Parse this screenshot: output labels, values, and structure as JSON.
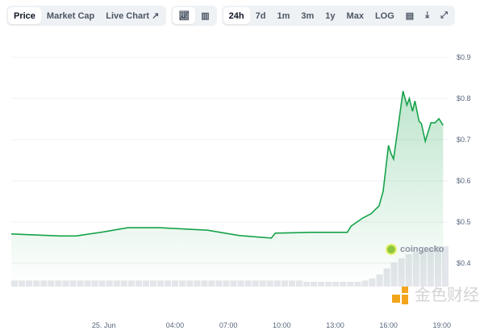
{
  "toolbar": {
    "view_tabs": [
      {
        "label": "Price",
        "selected": true
      },
      {
        "label": "Market Cap",
        "selected": false
      },
      {
        "label": "Live Chart",
        "icon": "external-link-icon",
        "selected": false
      }
    ],
    "chart_type_buttons": [
      {
        "icon": "line-chart-icon",
        "selected": true
      },
      {
        "icon": "candlestick-chart-icon",
        "selected": false
      }
    ],
    "ranges": [
      {
        "label": "24h",
        "selected": true
      },
      {
        "label": "7d"
      },
      {
        "label": "1m"
      },
      {
        "label": "3m"
      },
      {
        "label": "1y"
      },
      {
        "label": "Max"
      },
      {
        "label": "LOG"
      }
    ],
    "icons": [
      "calendar-icon",
      "download-icon",
      "fullscreen-icon"
    ]
  },
  "chart_data": {
    "type": "area",
    "line_color": "#16a34a",
    "fill_color": "#d1f0da",
    "y_ticks": [
      "$0.9",
      "$0.8",
      "$0.7",
      "$0.6",
      "$0.5",
      "$0.4"
    ],
    "ylim": [
      0.4,
      0.9
    ],
    "x_ticks": [
      "25. Jun",
      "04:00",
      "07:00",
      "10:00",
      "13:00",
      "16:00",
      "19:00"
    ],
    "xlim": [
      "24 Jun 18:48",
      "25 Jun 19:25"
    ],
    "grid": true,
    "series": [
      {
        "x": [
          "24 Jun 18:48",
          "24 Jun 21:32",
          "24 Jun 22:26",
          "25 Jun 00:00",
          "25 Jun 01:21",
          "25 Jun 03:08",
          "25 Jun 05:50",
          "25 Jun 07:37",
          "25 Jun 09:25",
          "25 Jun 09:38",
          "25 Jun 11:40",
          "25 Jun 13:41",
          "25 Jun 13:54",
          "25 Jun 14:34",
          "25 Jun 15:01",
          "25 Jun 15:28",
          "25 Jun 15:42",
          "25 Jun 16:00",
          "25 Jun 16:08",
          "25 Jun 16:17",
          "25 Jun 16:35",
          "25 Jun 16:49",
          "25 Jun 17:02",
          "25 Jun 17:10",
          "25 Jun 17:21",
          "25 Jun 17:29",
          "25 Jun 17:43",
          "25 Jun 17:51",
          "25 Jun 18:04",
          "25 Jun 18:23",
          "25 Jun 18:37",
          "25 Jun 18:50",
          "25 Jun 19:04"
        ],
        "y": [
          0.471,
          0.466,
          0.466,
          0.476,
          0.486,
          0.486,
          0.48,
          0.467,
          0.461,
          0.473,
          0.475,
          0.475,
          0.49,
          0.51,
          0.52,
          0.539,
          0.575,
          0.686,
          0.667,
          0.653,
          0.745,
          0.818,
          0.784,
          0.8,
          0.769,
          0.794,
          0.745,
          0.739,
          0.696,
          0.741,
          0.741,
          0.751,
          0.735
        ]
      }
    ],
    "volume_relative": [
      0.15,
      0.15,
      0.15,
      0.15,
      0.15,
      0.15,
      0.15,
      0.15,
      0.15,
      0.15,
      0.15,
      0.15,
      0.15,
      0.15,
      0.15,
      0.15,
      0.15,
      0.15,
      0.15,
      0.15,
      0.15,
      0.15,
      0.15,
      0.15,
      0.15,
      0.15,
      0.15,
      0.15,
      0.15,
      0.15,
      0.15,
      0.15,
      0.15,
      0.15,
      0.15,
      0.15,
      0.15,
      0.15,
      0.15,
      0.15,
      0.12,
      0.12,
      0.12,
      0.12,
      0.12,
      0.12,
      0.12,
      0.12,
      0.15,
      0.2,
      0.3,
      0.45,
      0.6,
      0.7,
      0.8,
      0.85,
      0.9,
      0.95,
      1.0,
      1.0
    ]
  },
  "watermarks": {
    "coingecko": "coingecko",
    "jinse": "金色财经"
  }
}
